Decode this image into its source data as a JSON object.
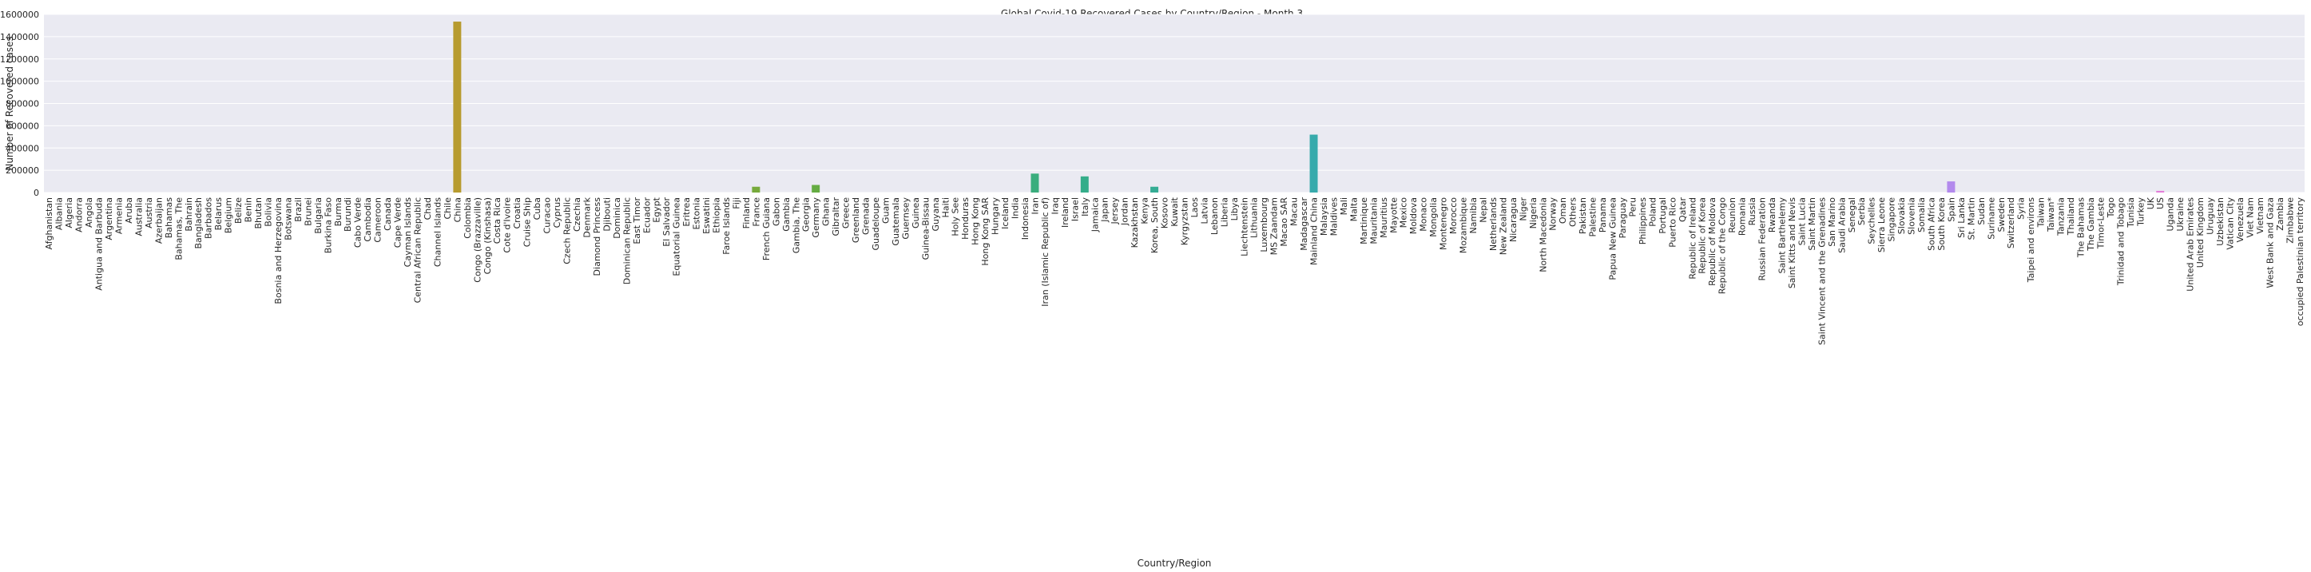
{
  "chart_data": {
    "type": "bar",
    "title": "Global Covid-19 Recovered Cases by Country/Region - Month 3",
    "xlabel": "Country/Region",
    "ylabel": "Number of Recovered cases",
    "ylim": [
      0,
      1600000
    ],
    "yticks": [
      0,
      200000,
      400000,
      600000,
      800000,
      1000000,
      1200000,
      1400000,
      1600000
    ],
    "ytick_labels": [
      "0",
      "200000",
      "400000",
      "600000",
      "800000",
      "1000000",
      "1200000",
      "1400000",
      "1600000"
    ],
    "grid": true,
    "legend": "none",
    "background": "#eaeaf2",
    "grid_color": "#ffffff",
    "categories": [
      "Afghanistan",
      "Albania",
      "Algeria",
      "Andorra",
      "Angola",
      "Antigua and Barbuda",
      "Argentina",
      "Armenia",
      "Aruba",
      "Australia",
      "Austria",
      "Azerbaijan",
      "Bahamas",
      "Bahamas, The",
      "Bahrain",
      "Bangladesh",
      "Barbados",
      "Belarus",
      "Belgium",
      "Belize",
      "Benin",
      "Bhutan",
      "Bolivia",
      "Bosnia and Herzegovina",
      "Botswana",
      "Brazil",
      "Brunei",
      "Bulgaria",
      "Burkina Faso",
      "Burma",
      "Burundi",
      "Cabo Verde",
      "Cambodia",
      "Cameroon",
      "Canada",
      "Cape Verde",
      "Cayman Islands",
      "Central African Republic",
      "Chad",
      "Channel Islands",
      "Chile",
      "China",
      "Colombia",
      "Congo (Brazzaville)",
      "Congo (Kinshasa)",
      "Costa Rica",
      "Cote d'Ivoire",
      "Croatia",
      "Cruise Ship",
      "Cuba",
      "Curacao",
      "Cyprus",
      "Czech Republic",
      "Czechia",
      "Denmark",
      "Diamond Princess",
      "Djibouti",
      "Dominica",
      "Dominican Republic",
      "East Timor",
      "Ecuador",
      "Egypt",
      "El Salvador",
      "Equatorial Guinea",
      "Eritrea",
      "Estonia",
      "Eswatini",
      "Ethiopia",
      "Faroe Islands",
      "Fiji",
      "Finland",
      "France",
      "French Guiana",
      "Gabon",
      "Gambia",
      "Gambia, The",
      "Georgia",
      "Germany",
      "Ghana",
      "Gibraltar",
      "Greece",
      "Greenland",
      "Grenada",
      "Guadeloupe",
      "Guam",
      "Guatemala",
      "Guernsey",
      "Guinea",
      "Guinea-Bissau",
      "Guyana",
      "Haiti",
      "Holy See",
      "Honduras",
      "Hong Kong",
      "Hong Kong SAR",
      "Hungary",
      "Iceland",
      "India",
      "Indonesia",
      "Iran",
      "Iran (Islamic Republic of)",
      "Iraq",
      "Ireland",
      "Israel",
      "Italy",
      "Jamaica",
      "Japan",
      "Jersey",
      "Jordan",
      "Kazakhstan",
      "Kenya",
      "Korea, South",
      "Kosovo",
      "Kuwait",
      "Kyrgyzstan",
      "Laos",
      "Latvia",
      "Lebanon",
      "Liberia",
      "Libya",
      "Liechtenstein",
      "Lithuania",
      "Luxembourg",
      "MS Zaandam",
      "Macao SAR",
      "Macau",
      "Madagascar",
      "Mainland China",
      "Malaysia",
      "Maldives",
      "Mali",
      "Malta",
      "Martinique",
      "Mauritania",
      "Mauritius",
      "Mayotte",
      "Mexico",
      "Moldova",
      "Monaco",
      "Mongolia",
      "Montenegro",
      "Morocco",
      "Mozambique",
      "Namibia",
      "Nepal",
      "Netherlands",
      "New Zealand",
      "Nicaragua",
      "Niger",
      "Nigeria",
      "North Macedonia",
      "Norway",
      "Oman",
      "Others",
      "Pakistan",
      "Palestine",
      "Panama",
      "Papua New Guinea",
      "Paraguay",
      "Peru",
      "Philippines",
      "Poland",
      "Portugal",
      "Puerto Rico",
      "Qatar",
      "Republic of Ireland",
      "Republic of Korea",
      "Republic of Moldova",
      "Republic of the Congo",
      "Reunion",
      "Romania",
      "Russia",
      "Russian Federation",
      "Rwanda",
      "Saint Barthelemy",
      "Saint Kitts and Nevis",
      "Saint Lucia",
      "Saint Martin",
      "Saint Vincent and the Grenadines",
      "San Marino",
      "Saudi Arabia",
      "Senegal",
      "Serbia",
      "Seychelles",
      "Sierra Leone",
      "Singapore",
      "Slovakia",
      "Slovenia",
      "Somalia",
      "South Africa",
      "South Korea",
      "Spain",
      "Sri Lanka",
      "St. Martin",
      "Sudan",
      "Suriname",
      "Sweden",
      "Switzerland",
      "Syria",
      "Taipei and environs",
      "Taiwan",
      "Taiwan*",
      "Tanzania",
      "Thailand",
      "The Bahamas",
      "The Gambia",
      "Timor-Leste",
      "Togo",
      "Trinidad and Tobago",
      "Tunisia",
      "Turkey",
      "UK",
      "US",
      "Uganda",
      "Ukraine",
      "United Arab Emirates",
      "United Kingdom",
      "Uruguay",
      "Uzbekistan",
      "Vatican City",
      "Venezuela",
      "Viet Nam",
      "Vietnam",
      "West Bank and Gaza",
      "Zambia",
      "Zimbabwe",
      "occupied Palestinian territory"
    ],
    "values": {
      "China": 1535000,
      "France": 52000,
      "Germany": 68000,
      "Iran": 170000,
      "Italy": 145000,
      "Korea, South": 52000,
      "Mainland China": 520000,
      "Spain": 100000,
      "US": 15000
    },
    "palette_order": [
      "#e8837a",
      "#d3904a",
      "#b79b2f",
      "#93a632",
      "#56ae49",
      "#34ad88",
      "#37aba7",
      "#39a8c0",
      "#4b9fd9",
      "#a18ff0",
      "#dd7fe6",
      "#f27cbd"
    ]
  }
}
